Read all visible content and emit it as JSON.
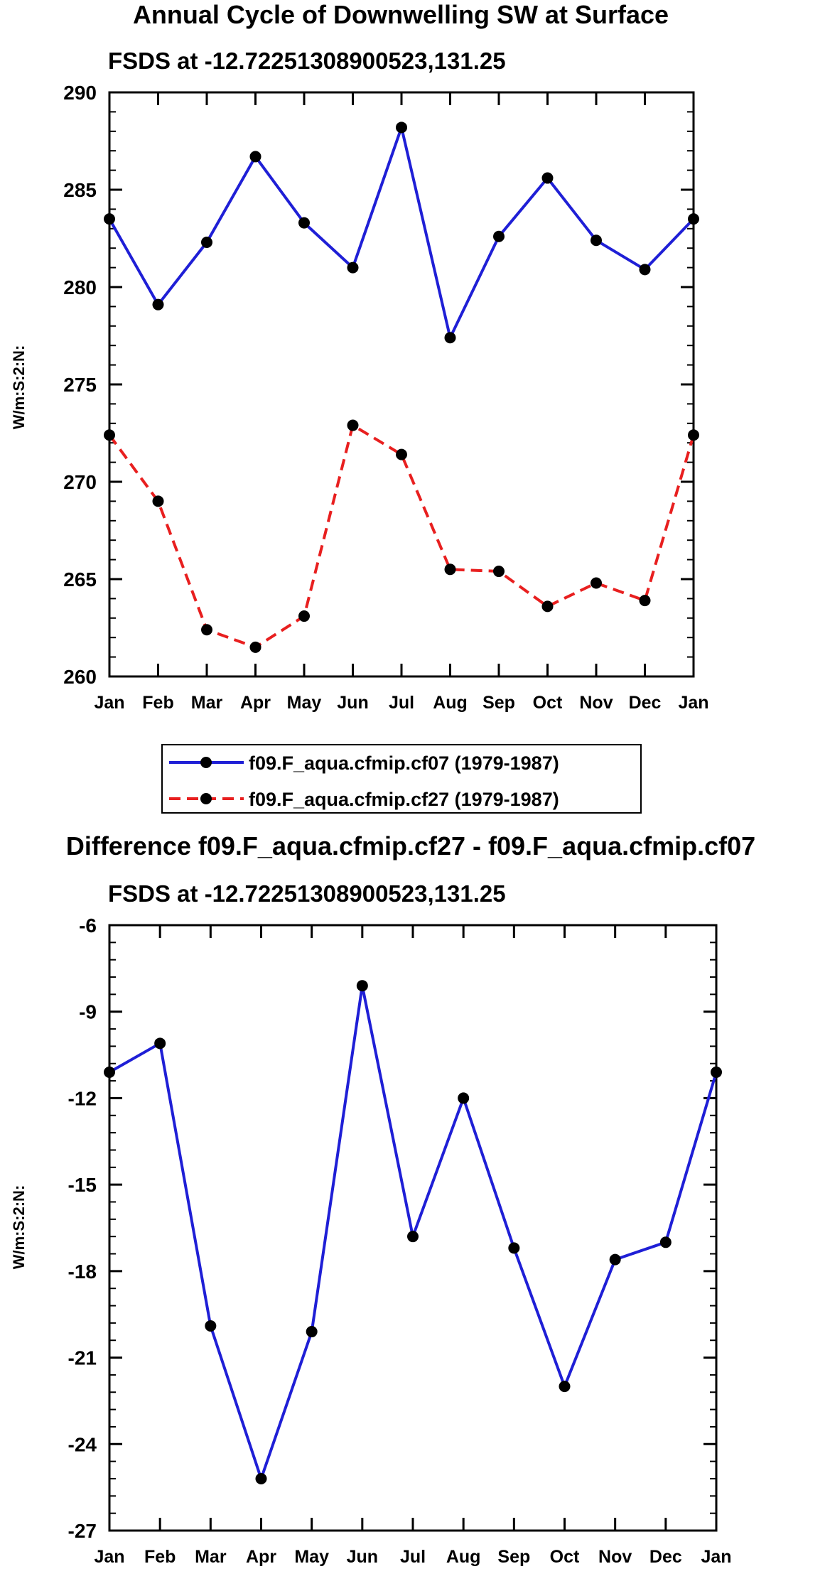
{
  "chart_data": [
    {
      "type": "line",
      "title": "Annual Cycle of Downwelling SW at Surface",
      "subtitle": "FSDS at -12.72251308900523,131.25",
      "ylabel": "W/m:S:2:N:",
      "ylim": [
        260,
        290
      ],
      "yticks": [
        "260",
        "265",
        "270",
        "275",
        "280",
        "285",
        "290"
      ],
      "categories": [
        "Jan",
        "Feb",
        "Mar",
        "Apr",
        "May",
        "Jun",
        "Jul",
        "Aug",
        "Sep",
        "Oct",
        "Nov",
        "Dec",
        "Jan"
      ],
      "series": [
        {
          "name": "f09.F_aqua.cfmip.cf07 (1979-1987)",
          "color": "#1f1fd6",
          "dash": "solid",
          "values": [
            283.5,
            279.1,
            282.3,
            286.7,
            283.3,
            281.0,
            288.2,
            277.4,
            282.6,
            285.6,
            282.4,
            280.9,
            283.5
          ]
        },
        {
          "name": "f09.F_aqua.cfmip.cf27 (1979-1987)",
          "color": "#e81f1f",
          "dash": "dashed",
          "values": [
            272.4,
            269.0,
            262.4,
            261.5,
            263.1,
            272.9,
            271.4,
            265.5,
            265.4,
            263.6,
            264.8,
            263.9,
            272.4
          ]
        }
      ]
    },
    {
      "type": "line",
      "title": "Difference f09.F_aqua.cfmip.cf27 - f09.F_aqua.cfmip.cf07",
      "subtitle": "FSDS at -12.72251308900523,131.25",
      "ylabel": "W/m:S:2:N:",
      "ylim": [
        -27,
        -6
      ],
      "yticks": [
        "-27",
        "-24",
        "-21",
        "-18",
        "-15",
        "-12",
        "-9",
        "-6"
      ],
      "categories": [
        "Jan",
        "Feb",
        "Mar",
        "Apr",
        "May",
        "Jun",
        "Jul",
        "Aug",
        "Sep",
        "Oct",
        "Nov",
        "Dec",
        "Jan"
      ],
      "series": [
        {
          "name": "Difference",
          "color": "#1f1fd6",
          "dash": "solid",
          "values": [
            -11.1,
            -10.1,
            -19.9,
            -25.2,
            -20.1,
            -8.1,
            -16.8,
            -12.0,
            -17.2,
            -22.0,
            -17.6,
            -17.0,
            -11.1
          ]
        }
      ]
    }
  ]
}
